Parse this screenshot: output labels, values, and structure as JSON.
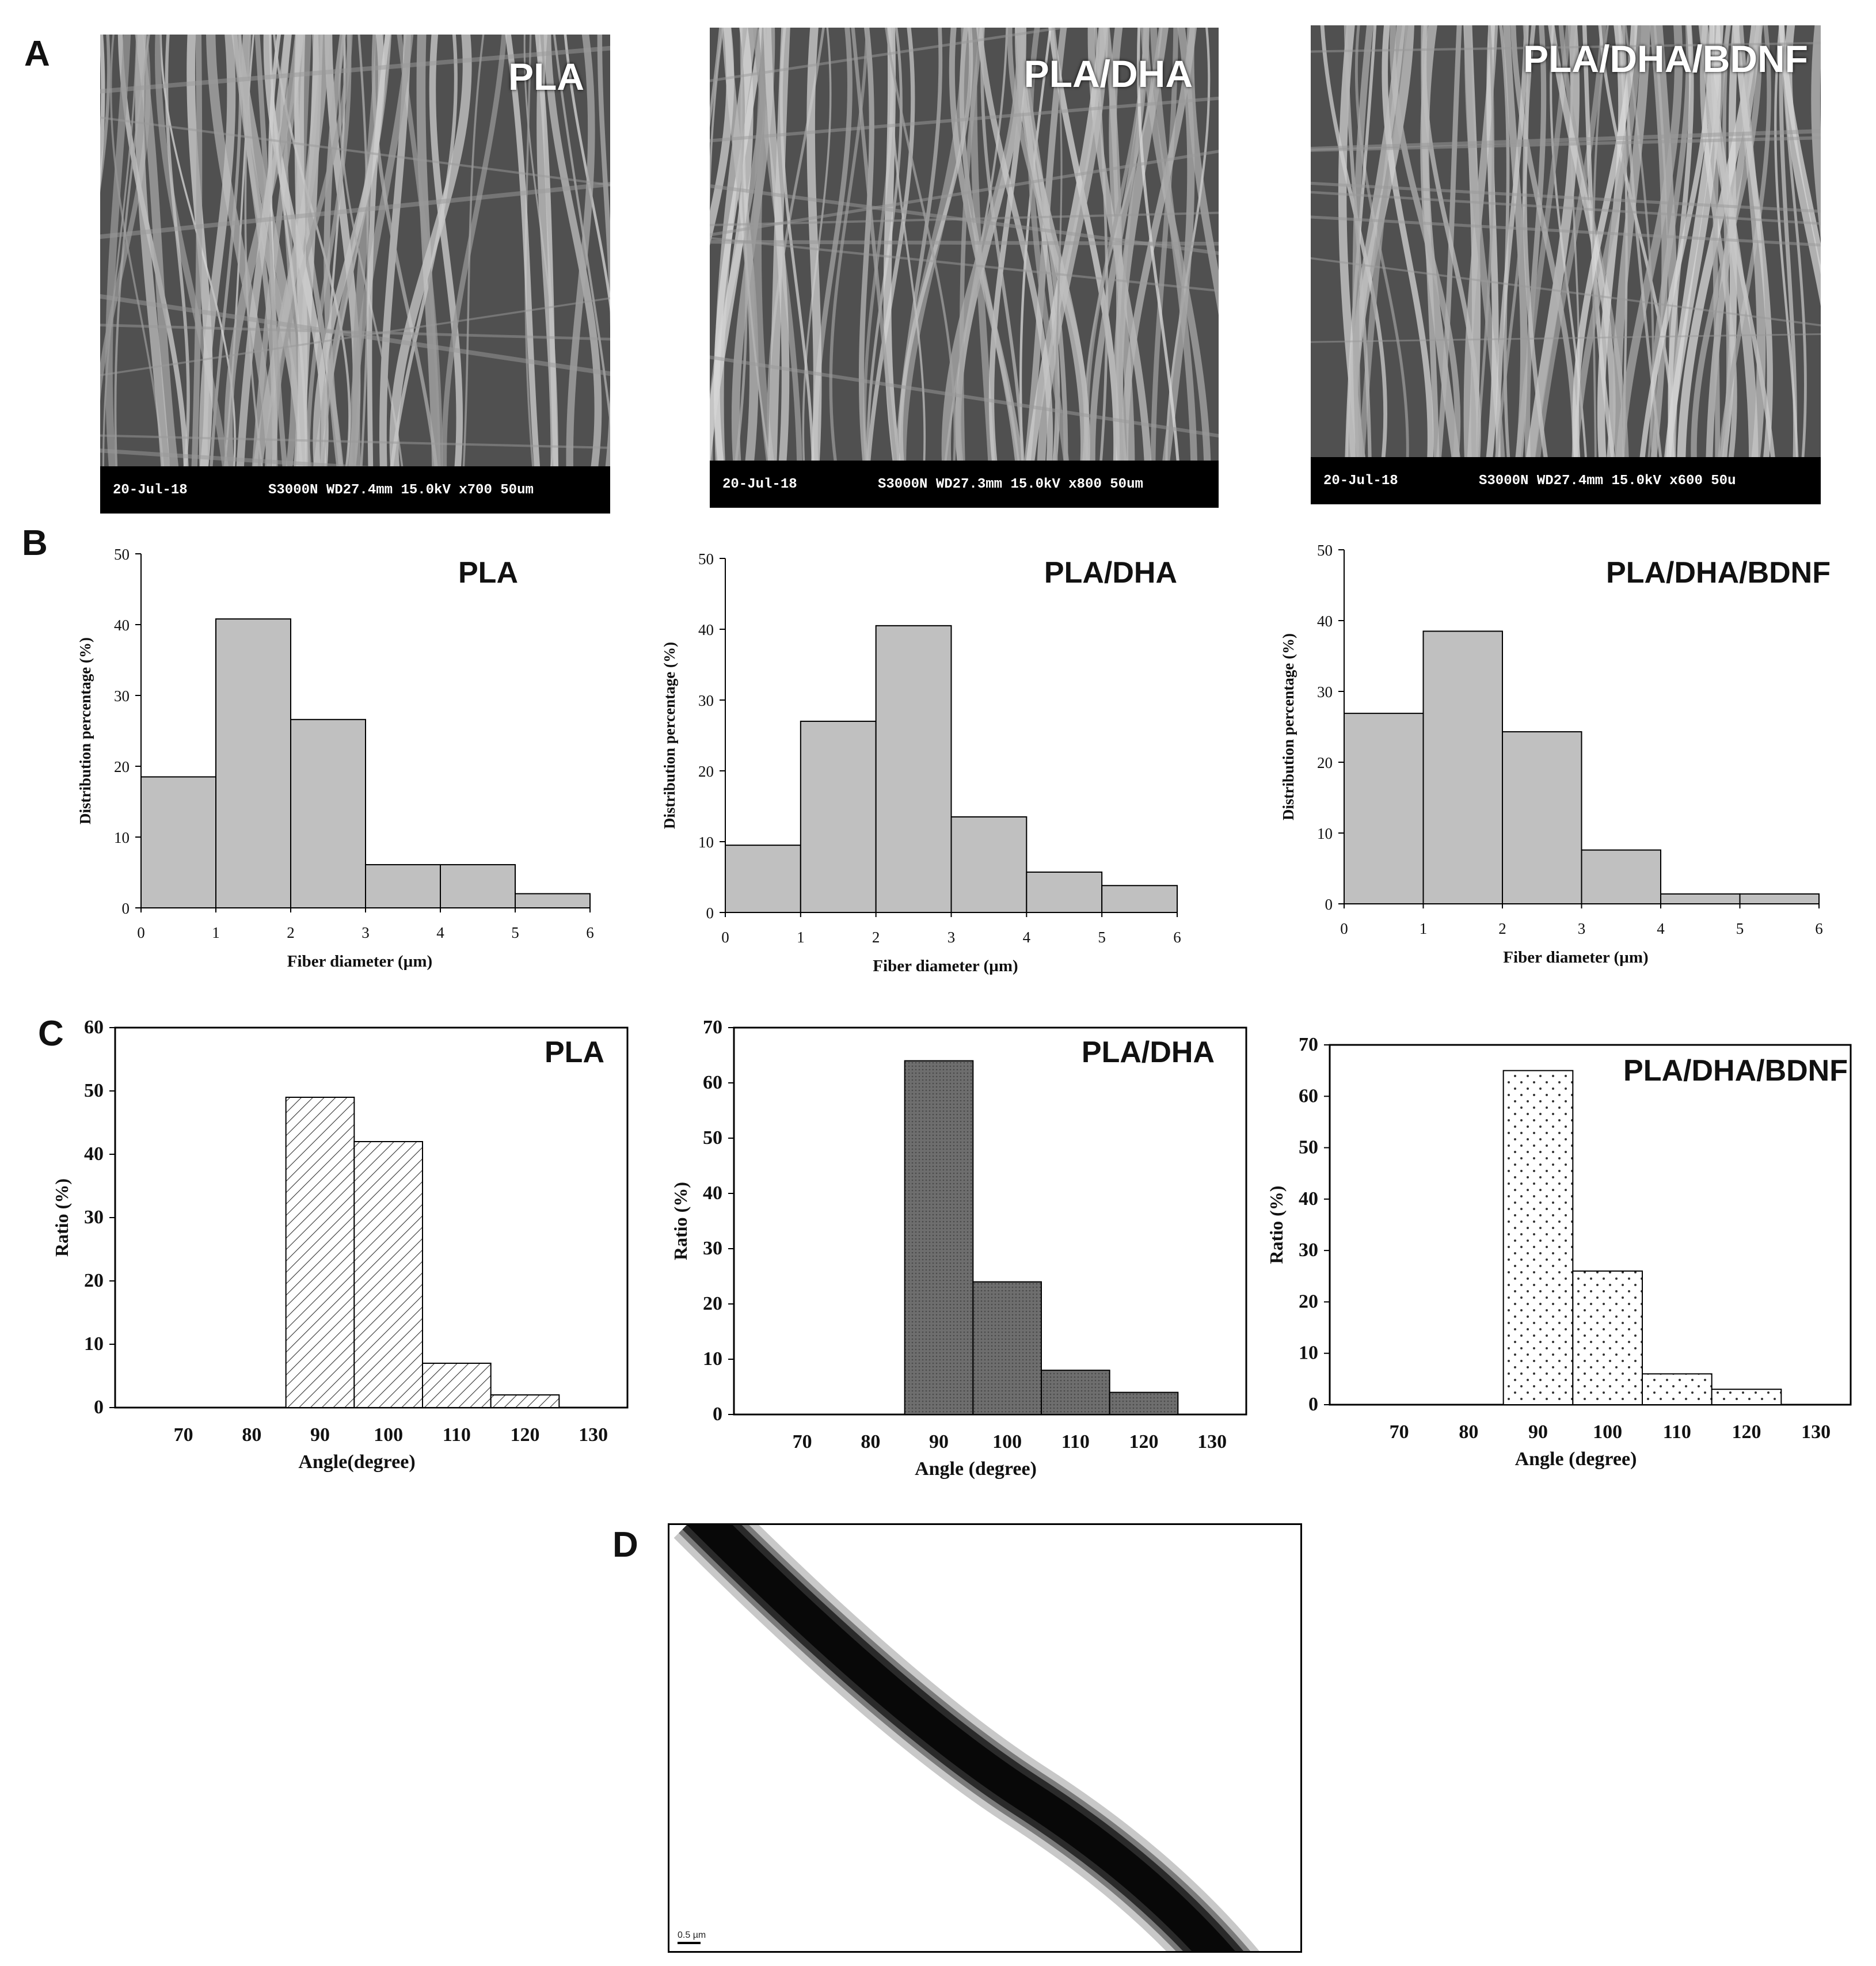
{
  "panels": {
    "a": "A",
    "b": "B",
    "c": "C",
    "d": "D"
  },
  "sem_images": [
    {
      "title": "PLA",
      "info_date": "20-Jul-18",
      "info_params": "S3000N WD27.4mm 15.0kV x700   50um"
    },
    {
      "title": "PLA/DHA",
      "info_date": "20-Jul-18",
      "info_params": "S3000N WD27.3mm 15.0kV x800   50um"
    },
    {
      "title": "PLA/DHA/BDNF",
      "info_date": "20-Jul-18",
      "info_params": "S3000N WD27.4mm 15.0kV x600   50u"
    }
  ],
  "tem_image": {
    "scale_label": "0.5 µm"
  },
  "chart_data": [
    {
      "id": "diam-pla",
      "type": "bar",
      "title": "PLA",
      "xlabel": "Fiber diameter (µm)",
      "ylabel": "Distribution percentage (%)",
      "bin_edges": [
        0,
        1,
        2,
        3,
        4,
        5,
        6
      ],
      "values": [
        18.5,
        40.8,
        26.6,
        6.1,
        6.1,
        2.0
      ],
      "xlim": [
        0,
        6
      ],
      "ylim": [
        0,
        50
      ],
      "yticks": [
        0,
        10,
        20,
        30,
        40,
        50
      ],
      "xticks": [
        0,
        1,
        2,
        3,
        4,
        5,
        6
      ],
      "fill": "#c0c0c0",
      "pattern": "solid",
      "frame": "axes"
    },
    {
      "id": "diam-pla-dha",
      "type": "bar",
      "title": "PLA/DHA",
      "xlabel": "Fiber diameter (µm)",
      "ylabel": "Distribution percentage (%)",
      "bin_edges": [
        0,
        1,
        2,
        3,
        4,
        5,
        6
      ],
      "values": [
        9.5,
        27.0,
        40.5,
        13.5,
        5.7,
        3.8
      ],
      "xlim": [
        0,
        6
      ],
      "ylim": [
        0,
        50
      ],
      "yticks": [
        0,
        10,
        20,
        30,
        40,
        50
      ],
      "xticks": [
        0,
        1,
        2,
        3,
        4,
        5,
        6
      ],
      "fill": "#c0c0c0",
      "pattern": "solid",
      "frame": "axes"
    },
    {
      "id": "diam-pla-dha-bdnf",
      "type": "bar",
      "title": "PLA/DHA/BDNF",
      "xlabel": "Fiber diameter (µm)",
      "ylabel": "Distribution percentage (%)",
      "bin_edges": [
        0,
        1,
        2,
        3,
        4,
        5,
        6
      ],
      "values": [
        26.9,
        38.5,
        24.3,
        7.6,
        1.4,
        1.4
      ],
      "xlim": [
        0,
        6
      ],
      "ylim": [
        0,
        50
      ],
      "yticks": [
        0,
        10,
        20,
        30,
        40,
        50
      ],
      "xticks": [
        0,
        1,
        2,
        3,
        4,
        5,
        6
      ],
      "fill": "#c0c0c0",
      "pattern": "solid",
      "frame": "axes"
    },
    {
      "id": "angle-pla",
      "type": "bar",
      "title": "PLA",
      "xlabel": "Angle(degree)",
      "ylabel": "Ratio (%)",
      "bin_edges": [
        85,
        95,
        105,
        115,
        125
      ],
      "values": [
        49,
        42,
        7,
        2
      ],
      "xlim": [
        60,
        135
      ],
      "ylim": [
        0,
        60
      ],
      "yticks": [
        0,
        10,
        20,
        30,
        40,
        50,
        60
      ],
      "xticks": [
        70,
        80,
        90,
        100,
        110,
        120,
        130
      ],
      "fill": "#ffffff",
      "pattern": "hatch",
      "frame": "box"
    },
    {
      "id": "angle-pla-dha",
      "type": "bar",
      "title": "PLA/DHA",
      "xlabel": "Angle (degree)",
      "ylabel": "Ratio (%)",
      "bin_edges": [
        85,
        95,
        105,
        115,
        125
      ],
      "values": [
        64,
        24,
        8,
        4
      ],
      "xlim": [
        60,
        135
      ],
      "ylim": [
        0,
        70
      ],
      "yticks": [
        0,
        10,
        20,
        30,
        40,
        50,
        60,
        70
      ],
      "xticks": [
        70,
        80,
        90,
        100,
        110,
        120,
        130
      ],
      "fill": "#6e6e6e",
      "pattern": "solid",
      "frame": "box"
    },
    {
      "id": "angle-pla-dha-bdnf",
      "type": "bar",
      "title": "PLA/DHA/BDNF",
      "xlabel": "Angle (degree)",
      "ylabel": "Ratio (%)",
      "bin_edges": [
        85,
        95,
        105,
        115,
        125
      ],
      "values": [
        65,
        26,
        6,
        3
      ],
      "xlim": [
        60,
        135
      ],
      "ylim": [
        0,
        70
      ],
      "yticks": [
        0,
        10,
        20,
        30,
        40,
        50,
        60,
        70
      ],
      "xticks": [
        70,
        80,
        90,
        100,
        110,
        120,
        130
      ],
      "fill": "#ffffff",
      "pattern": "dots",
      "frame": "box"
    }
  ]
}
